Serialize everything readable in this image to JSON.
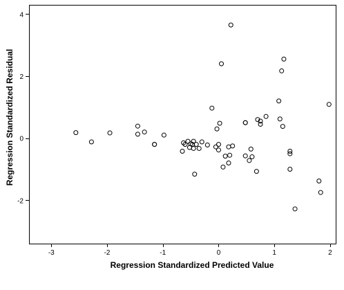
{
  "chart_data": {
    "type": "scatter",
    "title": "",
    "xlabel": "Regression Standardized Predicted Value",
    "ylabel": "Regression Standardized Residual",
    "xlim": [
      -3.4,
      2.1
    ],
    "ylim": [
      -3.4,
      4.3
    ],
    "xticks": [
      -3,
      -2,
      -1,
      0,
      1,
      2
    ],
    "yticks": [
      -2,
      0,
      2,
      4
    ],
    "grid": false,
    "legend": "none",
    "marker": "open-circle",
    "color": "#000000",
    "points": [
      {
        "x": -2.56,
        "y": 0.18
      },
      {
        "x": -2.28,
        "y": -0.12
      },
      {
        "x": -1.95,
        "y": 0.17
      },
      {
        "x": -1.45,
        "y": 0.39
      },
      {
        "x": -1.45,
        "y": 0.13
      },
      {
        "x": -1.33,
        "y": 0.2
      },
      {
        "x": -1.15,
        "y": -0.2
      },
      {
        "x": -1.15,
        "y": -0.2
      },
      {
        "x": -0.98,
        "y": 0.1
      },
      {
        "x": -0.65,
        "y": -0.42
      },
      {
        "x": -0.63,
        "y": -0.15
      },
      {
        "x": -0.6,
        "y": -0.2
      },
      {
        "x": -0.55,
        "y": -0.1
      },
      {
        "x": -0.52,
        "y": -0.3
      },
      {
        "x": -0.5,
        "y": -0.18
      },
      {
        "x": -0.47,
        "y": -0.2
      },
      {
        "x": -0.45,
        "y": -0.33
      },
      {
        "x": -0.45,
        "y": -0.1
      },
      {
        "x": -0.43,
        "y": -1.16
      },
      {
        "x": -0.4,
        "y": -0.2
      },
      {
        "x": -0.35,
        "y": -0.33
      },
      {
        "x": -0.3,
        "y": -0.12
      },
      {
        "x": -0.2,
        "y": -0.22
      },
      {
        "x": -0.12,
        "y": 0.97
      },
      {
        "x": -0.05,
        "y": -0.28
      },
      {
        "x": -0.03,
        "y": 0.3
      },
      {
        "x": 0.0,
        "y": -0.2
      },
      {
        "x": 0.0,
        "y": -0.38
      },
      {
        "x": 0.02,
        "y": 0.48
      },
      {
        "x": 0.05,
        "y": 2.4
      },
      {
        "x": 0.08,
        "y": -0.93
      },
      {
        "x": 0.12,
        "y": -0.58
      },
      {
        "x": 0.18,
        "y": -0.8
      },
      {
        "x": 0.18,
        "y": -0.28
      },
      {
        "x": 0.2,
        "y": -0.55
      },
      {
        "x": 0.22,
        "y": 3.65
      },
      {
        "x": 0.25,
        "y": -0.25
      },
      {
        "x": 0.48,
        "y": 0.5
      },
      {
        "x": 0.48,
        "y": 0.5
      },
      {
        "x": 0.48,
        "y": -0.57
      },
      {
        "x": 0.55,
        "y": -0.72
      },
      {
        "x": 0.58,
        "y": -0.35
      },
      {
        "x": 0.6,
        "y": -0.6
      },
      {
        "x": 0.68,
        "y": -1.07
      },
      {
        "x": 0.7,
        "y": 0.6
      },
      {
        "x": 0.75,
        "y": 0.55
      },
      {
        "x": 0.75,
        "y": 0.45
      },
      {
        "x": 0.85,
        "y": 0.7
      },
      {
        "x": 1.08,
        "y": 1.2
      },
      {
        "x": 1.1,
        "y": 0.62
      },
      {
        "x": 1.13,
        "y": 2.17
      },
      {
        "x": 1.15,
        "y": 0.38
      },
      {
        "x": 1.17,
        "y": 2.55
      },
      {
        "x": 1.28,
        "y": -0.42
      },
      {
        "x": 1.28,
        "y": -0.5
      },
      {
        "x": 1.28,
        "y": -1.0
      },
      {
        "x": 1.37,
        "y": -2.28
      },
      {
        "x": 1.8,
        "y": -1.38
      },
      {
        "x": 1.83,
        "y": -1.75
      },
      {
        "x": 1.98,
        "y": 1.09
      }
    ]
  }
}
